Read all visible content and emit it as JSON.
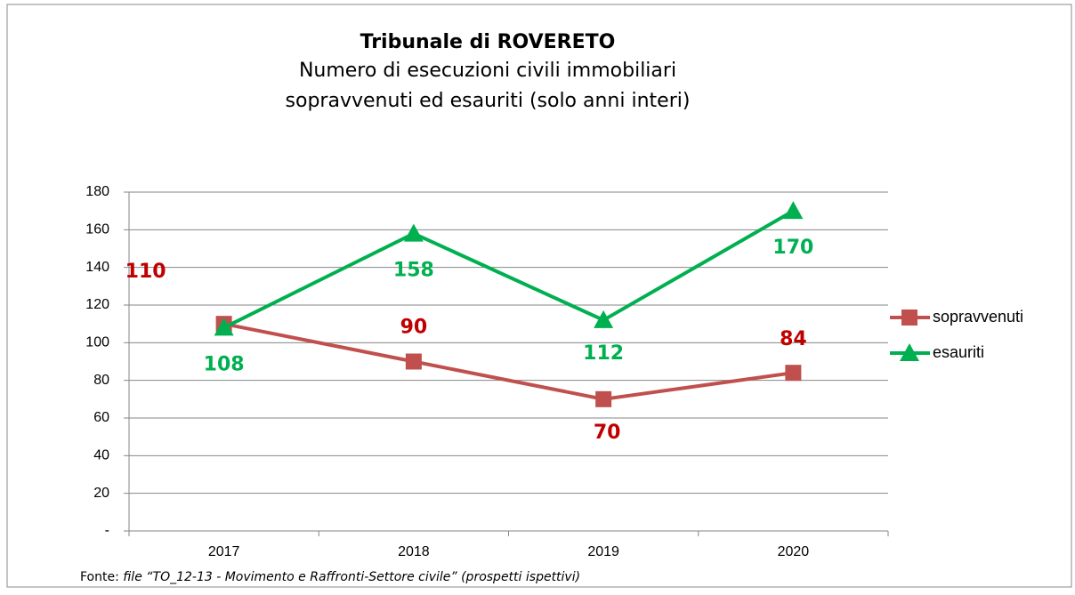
{
  "chart_data": {
    "type": "line",
    "title": "Tribunale di ROVERETO",
    "subtitle": [
      "Numero di esecuzioni civili immobiliari",
      "sopravvenuti ed esauriti (solo anni interi)"
    ],
    "categories": [
      "2017",
      "2018",
      "2019",
      "2020"
    ],
    "series": [
      {
        "name": "sopravvenuti",
        "color": "#c0504d",
        "label_color": "#c00000",
        "marker": "square",
        "values": [
          110,
          90,
          70,
          84
        ]
      },
      {
        "name": "esauriti",
        "color": "#00b050",
        "label_color": "#00b050",
        "marker": "triangle",
        "values": [
          108,
          158,
          112,
          170
        ]
      }
    ],
    "ylim": [
      0,
      180
    ],
    "yticks": [
      {
        "value": 0,
        "label": "-"
      },
      20,
      40,
      60,
      80,
      100,
      120,
      140,
      160,
      180
    ],
    "grid": true,
    "legend": "right",
    "source": {
      "prefix": "Fonte: ",
      "text": "file “TO_12-13 - Movimento e Raffronti-Settore civile” (prospetti ispettivi)"
    }
  }
}
